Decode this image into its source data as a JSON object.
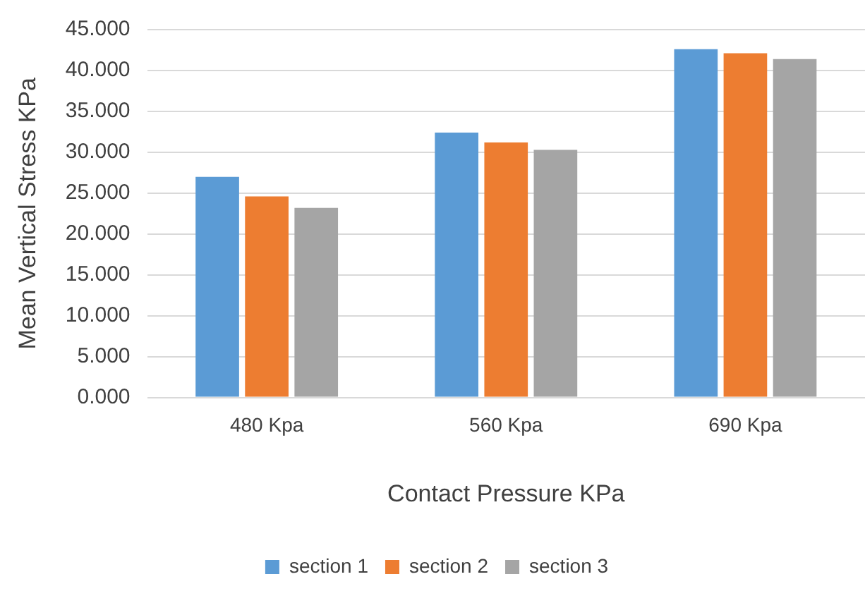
{
  "chart_data": {
    "type": "bar",
    "xlabel": "Contact Pressure KPa",
    "ylabel": "Mean Vertical Stress KPa",
    "categories": [
      "480 Kpa",
      "560 Kpa",
      "690 Kpa"
    ],
    "series": [
      {
        "name": "section 1",
        "color": "#5b9bd5",
        "values": [
          27.0,
          32.4,
          42.6
        ]
      },
      {
        "name": "section 2",
        "color": "#ed7d31",
        "values": [
          24.6,
          31.2,
          42.1
        ]
      },
      {
        "name": "section 3",
        "color": "#a5a5a5",
        "values": [
          23.2,
          30.3,
          41.4
        ]
      }
    ],
    "ylim": [
      0,
      45
    ],
    "yticks": [
      {
        "value": 0,
        "label": "0.000"
      },
      {
        "value": 5,
        "label": "5.000"
      },
      {
        "value": 10,
        "label": "10.000"
      },
      {
        "value": 15,
        "label": "15.000"
      },
      {
        "value": 20,
        "label": "20.000"
      },
      {
        "value": 25,
        "label": "25.000"
      },
      {
        "value": 30,
        "label": "30.000"
      },
      {
        "value": 35,
        "label": "35.000"
      },
      {
        "value": 40,
        "label": "40.000"
      },
      {
        "value": 45,
        "label": "45.000"
      }
    ],
    "grid": "y",
    "legend": "bottom"
  }
}
